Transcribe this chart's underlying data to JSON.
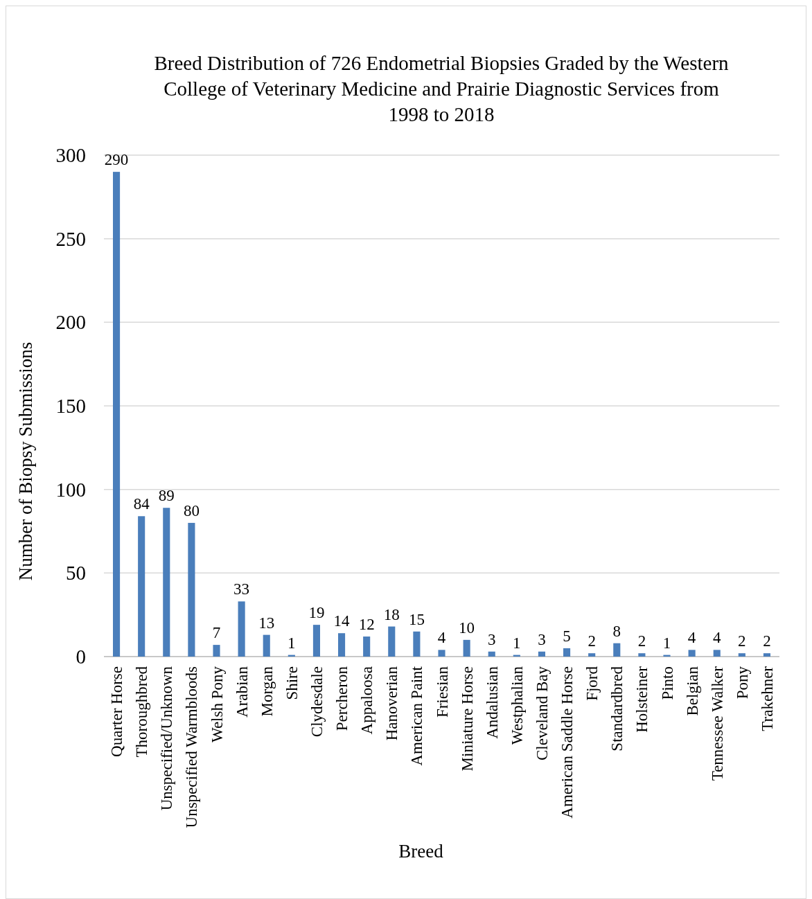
{
  "chart_data": {
    "type": "bar",
    "title": "Breed Distribution of 726 Endometrial Biopsies Graded by the Western College of Veterinary Medicine and Prairie Diagnostic Services from 1998 to 2018",
    "xlabel": "Breed",
    "ylabel": "Number of Biopsy Submissions",
    "categories": [
      "Quarter Horse",
      "Thoroughbred",
      "Unspecified/Unknown",
      "Unspecified Warmbloods",
      "Welsh Pony",
      "Arabian",
      "Morgan",
      "Shire",
      "Clydesdale",
      "Percheron",
      "Appaloosa",
      "Hanoverian",
      "American Paint",
      "Friesian",
      "Miniature Horse",
      "Andalusian",
      "Westphalian",
      "Cleveland Bay",
      "American Saddle Horse",
      "Fjord",
      "Standardbred",
      "Holsteiner",
      "Pinto",
      "Belgian",
      "Tennessee Walker",
      "Pony",
      "Trakehner"
    ],
    "values": [
      290,
      84,
      89,
      80,
      7,
      33,
      13,
      1,
      19,
      14,
      12,
      18,
      15,
      4,
      10,
      3,
      1,
      3,
      5,
      2,
      8,
      2,
      1,
      4,
      4,
      2,
      2
    ],
    "color": "#4a7ebb",
    "ylim": [
      0,
      300
    ],
    "yticks": [
      0,
      50,
      100,
      150,
      200,
      250,
      300
    ],
    "grid": "y",
    "data_labels": true
  }
}
